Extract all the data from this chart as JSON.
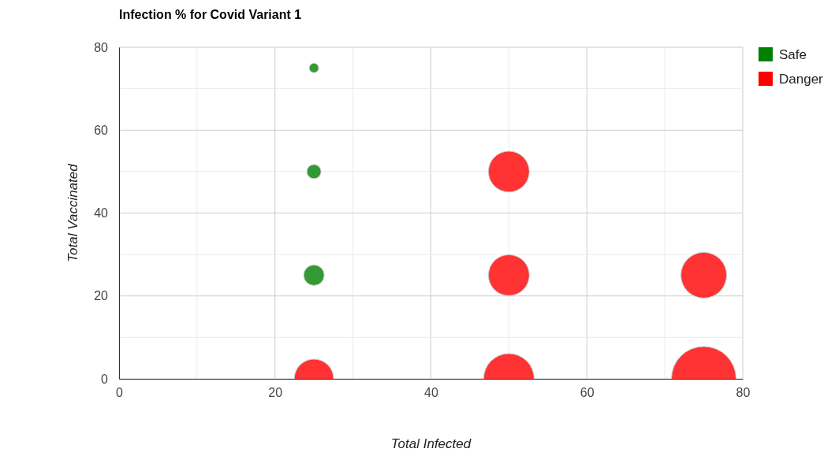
{
  "chart_data": {
    "type": "bubble",
    "title": "Infection % for Covid Variant 1",
    "xlabel": "Total Infected",
    "ylabel": "Total Vaccinated",
    "xlim": [
      0,
      80
    ],
    "xticks": [
      0,
      20,
      40,
      60,
      80
    ],
    "ylim": [
      0,
      80
    ],
    "yticks": [
      0,
      20,
      40,
      60,
      80
    ],
    "grid": true,
    "legend": "top right",
    "series": [
      {
        "name": "Safe",
        "color": "#008000",
        "x": [
          25,
          25,
          25
        ],
        "values": [
          75,
          50,
          25
        ],
        "sizes": [
          0.021,
          0.048,
          0.1
        ]
      },
      {
        "name": "Danger",
        "color": "#ff0000",
        "x": [
          25,
          50,
          50,
          50,
          75,
          75
        ],
        "values": [
          0,
          0,
          25,
          50,
          25,
          0
        ],
        "sizes": [
          0.37,
          0.61,
          0.4,
          0.4,
          0.5,
          1
        ]
      }
    ]
  }
}
